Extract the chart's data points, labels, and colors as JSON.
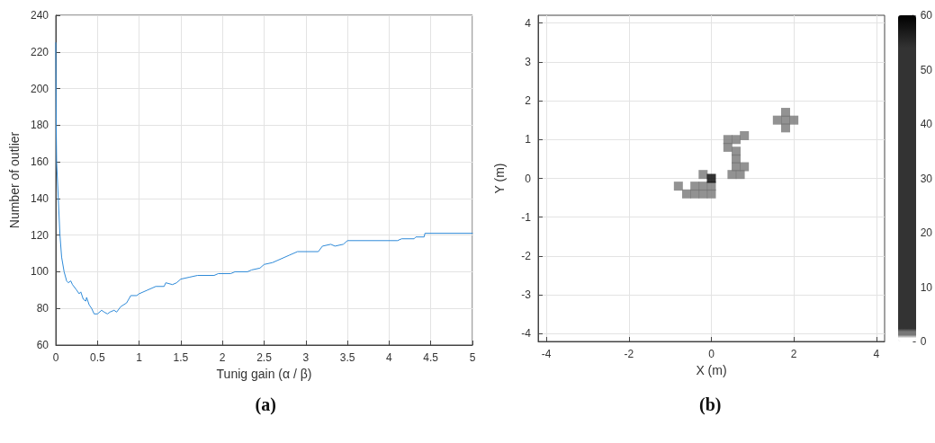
{
  "chart_data": [
    {
      "type": "line",
      "xlabel": "Tunig gain (α / β)",
      "ylabel": "Number of outlier",
      "annotations": [
        "(a)"
      ],
      "grid": true,
      "marker": "none",
      "line_style": "solid",
      "xlim": [
        0,
        5
      ],
      "xticks": [
        0,
        0.5,
        1,
        1.5,
        2,
        2.5,
        3,
        3.5,
        4,
        4.5,
        5
      ],
      "ylim": [
        60,
        240
      ],
      "yticks": [
        60,
        80,
        100,
        120,
        140,
        160,
        180,
        200,
        220,
        240
      ],
      "series": [
        {
          "color": "#2e8ad8",
          "x": [
            0,
            0.005,
            0.01,
            0.03,
            0.05,
            0.07,
            0.1,
            0.13,
            0.15,
            0.18,
            0.2,
            0.25,
            0.28,
            0.3,
            0.33,
            0.36,
            0.37,
            0.4,
            0.43,
            0.46,
            0.5,
            0.55,
            0.58,
            0.62,
            0.65,
            0.7,
            0.73,
            0.78,
            0.85,
            0.9,
            0.97,
            1.0,
            1.1,
            1.2,
            1.3,
            1.32,
            1.4,
            1.45,
            1.5,
            1.6,
            1.7,
            1.9,
            1.95,
            2.1,
            2.15,
            2.3,
            2.35,
            2.45,
            2.5,
            2.6,
            2.7,
            2.8,
            2.9,
            3.15,
            3.2,
            3.3,
            3.35,
            3.45,
            3.5,
            4.1,
            4.15,
            4.3,
            4.32,
            4.42,
            4.43,
            5
          ],
          "values": [
            225,
            180,
            160,
            140,
            120,
            108,
            100,
            95,
            94,
            95,
            93,
            90,
            88,
            89,
            85,
            84,
            86,
            82,
            80,
            77,
            77,
            79,
            78,
            77,
            78,
            79,
            78,
            81,
            83,
            87,
            87,
            88,
            90,
            92,
            92,
            94,
            93,
            94,
            96,
            97,
            98,
            98,
            99,
            99,
            100,
            100,
            101,
            102,
            104,
            105,
            107,
            109,
            111,
            111,
            114,
            115,
            114,
            115,
            117,
            117,
            118,
            118,
            119,
            119,
            121,
            121
          ]
        }
      ]
    },
    {
      "type": "scatter",
      "xlabel": "X (m)",
      "ylabel": "Y (m)",
      "annotations": [
        "(b)"
      ],
      "grid": true,
      "marker": "square",
      "xlim": [
        -4.2,
        4.2
      ],
      "xticks": [
        -4,
        -2,
        0,
        2,
        4
      ],
      "ylim": [
        -4.2,
        4.2
      ],
      "yticks": [
        -4,
        -3,
        -2,
        -1,
        0,
        1,
        2,
        3,
        4
      ],
      "clim": [
        0,
        60
      ],
      "cticks": [
        0,
        10,
        20,
        30,
        40,
        50,
        60
      ],
      "x": [
        1.8,
        1.6,
        2.0,
        1.8,
        1.8,
        0.4,
        0.6,
        0.8,
        0.4,
        0.6,
        0.6,
        0.6,
        0.8,
        0.5,
        0.7,
        -0.8,
        -0.6,
        -0.4,
        -0.2,
        0,
        -0.4,
        -0.2,
        0,
        -0.2,
        0
      ],
      "values": [
        1.5,
        1.5,
        1.5,
        1.3,
        1.7,
        1.0,
        1.0,
        1.1,
        0.8,
        0.7,
        0.5,
        0.3,
        0.3,
        0.1,
        0.1,
        -0.2,
        -0.4,
        -0.4,
        -0.4,
        -0.4,
        -0.2,
        -0.2,
        -0.2,
        0.1,
        0
      ],
      "cvalues": [
        2,
        2,
        2,
        2,
        2,
        2,
        2,
        2,
        2,
        2,
        2,
        2,
        2,
        2,
        2,
        2,
        2,
        2,
        2,
        2,
        2,
        2,
        2,
        2,
        60
      ]
    }
  ]
}
